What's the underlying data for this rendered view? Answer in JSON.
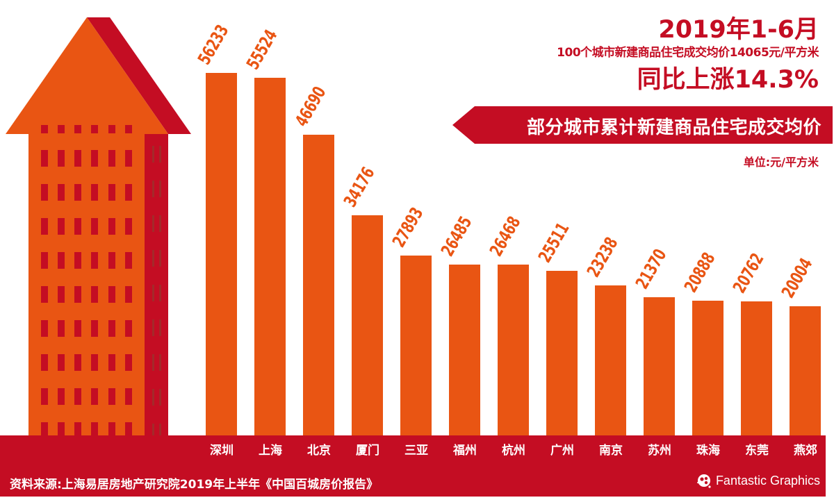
{
  "header": {
    "period": "2019年1-6月",
    "subtitle": "100个城市新建商品住宅成交均价14065元/平方米",
    "growth": "同比上涨14.3%"
  },
  "banner": {
    "label": "部分城市累计新建商品住宅成交均价"
  },
  "unit": "单位:元/平方米",
  "footer": {
    "source": "资料来源:上海易居房地产研究院2019年上半年《中国百城房价报告》",
    "brand": "Fantastic Graphics",
    "brand_icon": "fantastic-graphics-logo-icon"
  },
  "colors": {
    "bar": "#e95513",
    "accent_red": "#c40d23",
    "text_on_red": "#ffffff"
  },
  "chart_data": {
    "type": "bar",
    "title": "部分城市累计新建商品住宅成交均价",
    "subtitle": "2019年1-6月 100个城市新建商品住宅成交均价14065元/平方米 同比上涨14.3%",
    "xlabel": "",
    "ylabel": "元/平方米",
    "categories": [
      "深圳",
      "上海",
      "北京",
      "厦门",
      "三亚",
      "福州",
      "杭州",
      "广州",
      "南京",
      "苏州",
      "珠海",
      "东莞",
      "燕郊"
    ],
    "values": [
      56233,
      55524,
      46690,
      34176,
      27893,
      26485,
      26468,
      25511,
      23238,
      21370,
      20888,
      20762,
      20004
    ],
    "grid": false,
    "legend": "none",
    "data_labels": true,
    "ylim": [
      0,
      60000
    ]
  }
}
